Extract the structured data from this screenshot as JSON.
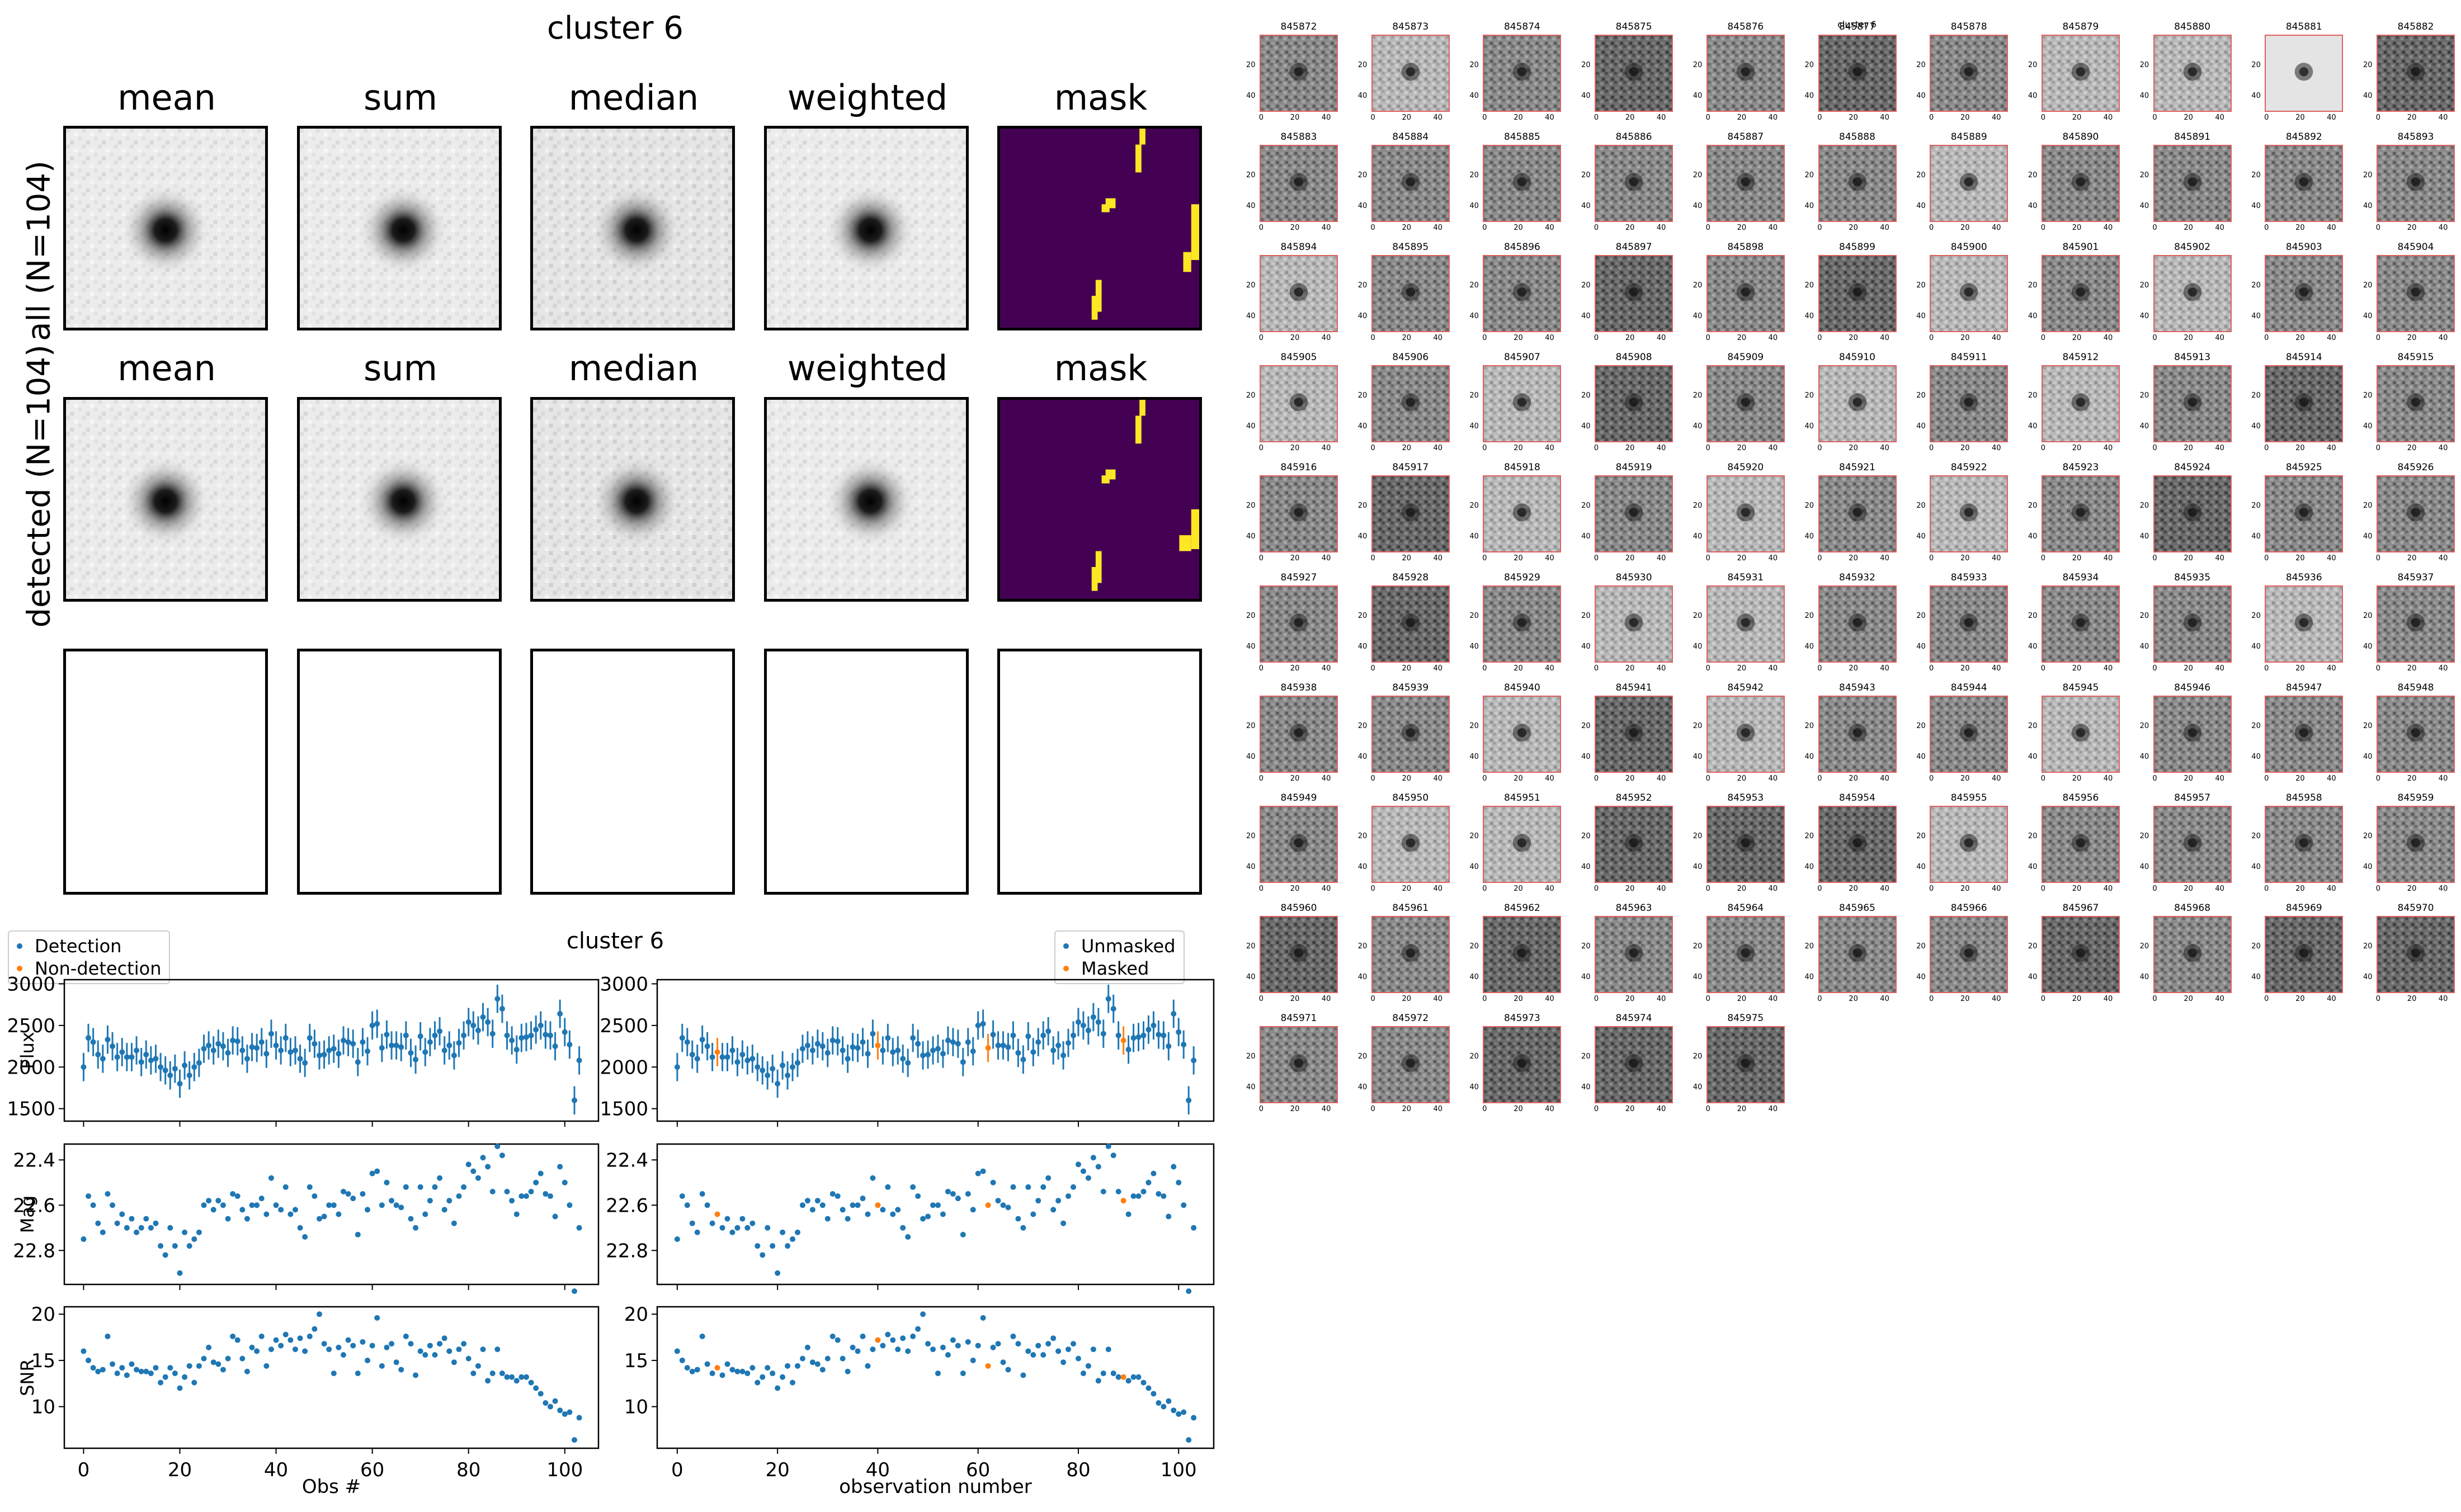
{
  "image_grid": {
    "title": "cluster 6",
    "columns": [
      "mean",
      "sum",
      "median",
      "weighted",
      "mask"
    ],
    "row_labels": [
      "all (N=104)",
      "detected (N=104)"
    ]
  },
  "lightcurve": {
    "title": "cluster 6",
    "legend_left": [
      "Detection",
      "Non-detection"
    ],
    "legend_right": [
      "Unmasked",
      "Masked"
    ],
    "ylabels": [
      "Flux",
      "Mag",
      "SNR"
    ],
    "xlabel_left": "Obs #",
    "xlabel_right": "observation number",
    "colors": {
      "blue": "#1f77b4",
      "orange": "#ff7f0e"
    }
  },
  "thumbnails": {
    "suptitle": "cluster 6",
    "ids": [
      "845872",
      "845873",
      "845874",
      "845875",
      "845876",
      "845877",
      "845878",
      "845879",
      "845880",
      "845881",
      "845882",
      "845883",
      "845884",
      "845885",
      "845886",
      "845887",
      "845888",
      "845889",
      "845890",
      "845891",
      "845892",
      "845893",
      "845894",
      "845895",
      "845896",
      "845897",
      "845898",
      "845899",
      "845900",
      "845901",
      "845902",
      "845903",
      "845904",
      "845905",
      "845906",
      "845907",
      "845908",
      "845909",
      "845910",
      "845911",
      "845912",
      "845913",
      "845914",
      "845915",
      "845916",
      "845917",
      "845918",
      "845919",
      "845920",
      "845921",
      "845922",
      "845923",
      "845924",
      "845925",
      "845926",
      "845927",
      "845928",
      "845929",
      "845930",
      "845931",
      "845932",
      "845933",
      "845934",
      "845935",
      "845936",
      "845937",
      "845938",
      "845939",
      "845940",
      "845941",
      "845942",
      "845943",
      "845944",
      "845945",
      "845946",
      "845947",
      "845948",
      "845949",
      "845950",
      "845951",
      "845952",
      "845953",
      "845954",
      "845955",
      "845956",
      "845957",
      "845958",
      "845959",
      "845960",
      "845961",
      "845962",
      "845963",
      "845964",
      "845965",
      "845966",
      "845967",
      "845968",
      "845969",
      "845970",
      "845971",
      "845972",
      "845973",
      "845974",
      "845975"
    ],
    "xticks": [
      "0",
      "20",
      "40"
    ],
    "yticks": [
      "20",
      "40"
    ]
  },
  "chart_data": [
    {
      "type": "scatter",
      "title": "cluster 6",
      "xlabel": "Obs #",
      "ylabel": "Flux",
      "xlim": [
        -4,
        107
      ],
      "ylim": [
        1350,
        3050
      ],
      "yticks": [
        1500,
        2000,
        2500,
        3000
      ],
      "xticks": [
        0,
        20,
        40,
        60,
        80,
        100
      ],
      "series": [
        {
          "name": "Detection",
          "x": [
            0,
            1,
            2,
            3,
            4,
            5,
            6,
            7,
            8,
            9,
            10,
            11,
            12,
            13,
            14,
            15,
            16,
            17,
            18,
            19,
            20,
            21,
            22,
            23,
            24,
            25,
            26,
            27,
            28,
            29,
            30,
            31,
            32,
            33,
            34,
            35,
            36,
            37,
            38,
            39,
            40,
            41,
            42,
            43,
            44,
            45,
            46,
            47,
            48,
            49,
            50,
            51,
            52,
            53,
            54,
            55,
            56,
            57,
            58,
            59,
            60,
            61,
            62,
            63,
            64,
            65,
            66,
            67,
            68,
            69,
            70,
            71,
            72,
            73,
            74,
            75,
            76,
            77,
            78,
            79,
            80,
            81,
            82,
            83,
            84,
            85,
            86,
            87,
            88,
            89,
            90,
            91,
            92,
            93,
            94,
            95,
            96,
            97,
            98,
            99,
            100,
            101,
            102,
            103
          ],
          "values": [
            2000,
            2350,
            2300,
            2150,
            2100,
            2330,
            2250,
            2120,
            2180,
            2120,
            2120,
            2200,
            2060,
            2150,
            2080,
            2100,
            2000,
            1960,
            1900,
            1980,
            1800,
            2020,
            1900,
            2000,
            2050,
            2220,
            2260,
            2200,
            2280,
            2250,
            2170,
            2320,
            2310,
            2200,
            2100,
            2240,
            2230,
            2300,
            2160,
            2400,
            2260,
            2200,
            2350,
            2180,
            2200,
            2100,
            2050,
            2350,
            2280,
            2140,
            2150,
            2200,
            2220,
            2160,
            2320,
            2300,
            2280,
            2060,
            2300,
            2190,
            2500,
            2520,
            2230,
            2390,
            2260,
            2260,
            2240,
            2380,
            2170,
            2090,
            2370,
            2180,
            2300,
            2380,
            2430,
            2200,
            2260,
            2140,
            2290,
            2380,
            2540,
            2500,
            2440,
            2600,
            2540,
            2400,
            2820,
            2700,
            2380,
            2320,
            2210,
            2350,
            2360,
            2380,
            2450,
            2500,
            2390,
            2380,
            2250,
            2640,
            2420,
            2270,
            1600,
            2080
          ],
          "errors": 170
        },
        {
          "name": "Non-detection",
          "x": [],
          "values": []
        }
      ]
    },
    {
      "type": "scatter",
      "xlabel": "Obs #",
      "ylabel": "Mag",
      "ylim": [
        22.95,
        22.33
      ],
      "yticks": [
        22.4,
        22.6,
        22.8
      ],
      "series": [
        {
          "name": "Detection",
          "x": [
            0,
            1,
            2,
            3,
            4,
            5,
            6,
            7,
            8,
            9,
            10,
            11,
            12,
            13,
            14,
            15,
            16,
            17,
            18,
            19,
            20,
            21,
            22,
            23,
            24,
            25,
            26,
            27,
            28,
            29,
            30,
            31,
            32,
            33,
            34,
            35,
            36,
            37,
            38,
            39,
            40,
            41,
            42,
            43,
            44,
            45,
            46,
            47,
            48,
            49,
            50,
            51,
            52,
            53,
            54,
            55,
            56,
            57,
            58,
            59,
            60,
            61,
            62,
            63,
            64,
            65,
            66,
            67,
            68,
            69,
            70,
            71,
            72,
            73,
            74,
            75,
            76,
            77,
            78,
            79,
            80,
            81,
            82,
            83,
            84,
            85,
            86,
            87,
            88,
            89,
            90,
            91,
            92,
            93,
            94,
            95,
            96,
            97,
            98,
            99,
            100,
            101,
            102,
            103
          ],
          "values": [
            22.75,
            22.56,
            22.6,
            22.68,
            22.72,
            22.55,
            22.6,
            22.68,
            22.64,
            22.7,
            22.66,
            22.72,
            22.7,
            22.66,
            22.7,
            22.68,
            22.78,
            22.82,
            22.7,
            22.78,
            22.9,
            22.72,
            22.78,
            22.75,
            22.72,
            22.6,
            22.58,
            22.62,
            22.58,
            22.6,
            22.66,
            22.55,
            22.56,
            22.62,
            22.66,
            22.6,
            22.6,
            22.57,
            22.64,
            22.48,
            22.6,
            22.62,
            22.52,
            22.64,
            22.62,
            22.7,
            22.74,
            22.52,
            22.56,
            22.66,
            22.65,
            22.6,
            22.6,
            22.64,
            22.54,
            22.55,
            22.57,
            22.73,
            22.55,
            22.62,
            22.46,
            22.45,
            22.6,
            22.5,
            22.58,
            22.6,
            22.61,
            22.52,
            22.66,
            22.7,
            22.52,
            22.64,
            22.58,
            22.52,
            22.48,
            22.62,
            22.58,
            22.68,
            22.56,
            22.52,
            22.42,
            22.45,
            22.48,
            22.39,
            22.43,
            22.54,
            22.34,
            22.38,
            22.54,
            22.58,
            22.64,
            22.56,
            22.56,
            22.54,
            22.5,
            22.46,
            22.55,
            22.56,
            22.65,
            22.43,
            22.5,
            22.6,
            22.98,
            22.7
          ]
        }
      ]
    },
    {
      "type": "scatter",
      "xlabel": "Obs #",
      "ylabel": "SNR",
      "ylim": [
        5.5,
        20.8
      ],
      "yticks": [
        10,
        15,
        20
      ],
      "series": [
        {
          "name": "Detection",
          "x": [
            0,
            1,
            2,
            3,
            4,
            5,
            6,
            7,
            8,
            9,
            10,
            11,
            12,
            13,
            14,
            15,
            16,
            17,
            18,
            19,
            20,
            21,
            22,
            23,
            24,
            25,
            26,
            27,
            28,
            29,
            30,
            31,
            32,
            33,
            34,
            35,
            36,
            37,
            38,
            39,
            40,
            41,
            42,
            43,
            44,
            45,
            46,
            47,
            48,
            49,
            50,
            51,
            52,
            53,
            54,
            55,
            56,
            57,
            58,
            59,
            60,
            61,
            62,
            63,
            64,
            65,
            66,
            67,
            68,
            69,
            70,
            71,
            72,
            73,
            74,
            75,
            76,
            77,
            78,
            79,
            80,
            81,
            82,
            83,
            84,
            85,
            86,
            87,
            88,
            89,
            90,
            91,
            92,
            93,
            94,
            95,
            96,
            97,
            98,
            99,
            100,
            101,
            102,
            103
          ],
          "values": [
            16,
            15,
            14.2,
            13.8,
            14,
            17.6,
            14.6,
            13.6,
            14.2,
            13.4,
            14.6,
            14,
            13.8,
            13.8,
            13.6,
            14.2,
            12.6,
            13.2,
            14.2,
            13.6,
            12,
            13.2,
            14.4,
            12.6,
            14.4,
            15.2,
            16.4,
            14.8,
            14.6,
            14,
            15.2,
            17.6,
            17.2,
            15.2,
            13.8,
            16.4,
            16,
            17.6,
            14.4,
            16.2,
            17.2,
            16.6,
            17.8,
            17.2,
            16.2,
            17.4,
            16,
            17.6,
            18.4,
            20,
            16.8,
            16.2,
            13.6,
            16.4,
            15.6,
            17.2,
            16.6,
            13.6,
            17,
            15,
            16.6,
            19.6,
            14.4,
            16.4,
            16.8,
            14.8,
            14,
            17.6,
            16.8,
            13.4,
            16,
            15.6,
            16.6,
            15.6,
            16.8,
            17.4,
            16,
            14.8,
            16.2,
            16.8,
            15.2,
            13.6,
            14.4,
            16.2,
            12.8,
            13.6,
            16.2,
            13.6,
            13.2,
            13.2,
            12.8,
            13.2,
            13.2,
            12.6,
            12,
            11.4,
            10.4,
            10,
            10.6,
            9.6,
            9.2,
            9.4,
            6.4,
            8.8
          ]
        }
      ]
    }
  ]
}
